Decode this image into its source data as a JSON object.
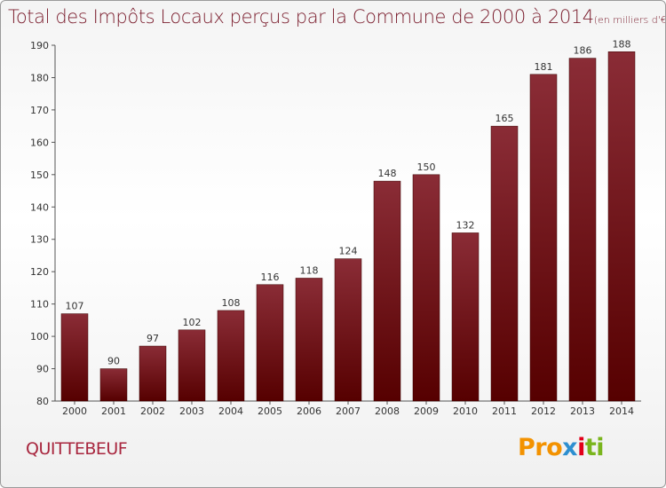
{
  "title_main": "Total des Impôts Locaux perçus par la Commune de 2000 à 2014",
  "title_unit": "(en milliers d'€)",
  "commune": "QUITTEBEUF",
  "logo": {
    "p1": "Pro",
    "p2": "x",
    "p3": "i",
    "p4": "ti"
  },
  "colors": {
    "bar_top": "#8a2c36",
    "bar_bottom": "#560000",
    "title": "#7a1c2c",
    "commune": "#a8263e"
  },
  "chart_data": {
    "type": "bar",
    "title": "Total des Impôts Locaux perçus par la Commune de 2000 à 2014",
    "unit": "(en milliers d'€)",
    "categories": [
      "2000",
      "2001",
      "2002",
      "2003",
      "2004",
      "2005",
      "2006",
      "2007",
      "2008",
      "2009",
      "2010",
      "2011",
      "2012",
      "2013",
      "2014"
    ],
    "values": [
      107,
      90,
      97,
      102,
      108,
      116,
      118,
      124,
      148,
      150,
      132,
      165,
      181,
      186,
      188
    ],
    "ylim": [
      80,
      190
    ],
    "yticks": [
      80,
      90,
      100,
      110,
      120,
      130,
      140,
      150,
      160,
      170,
      180,
      190
    ],
    "grid": false,
    "data_labels": true
  }
}
